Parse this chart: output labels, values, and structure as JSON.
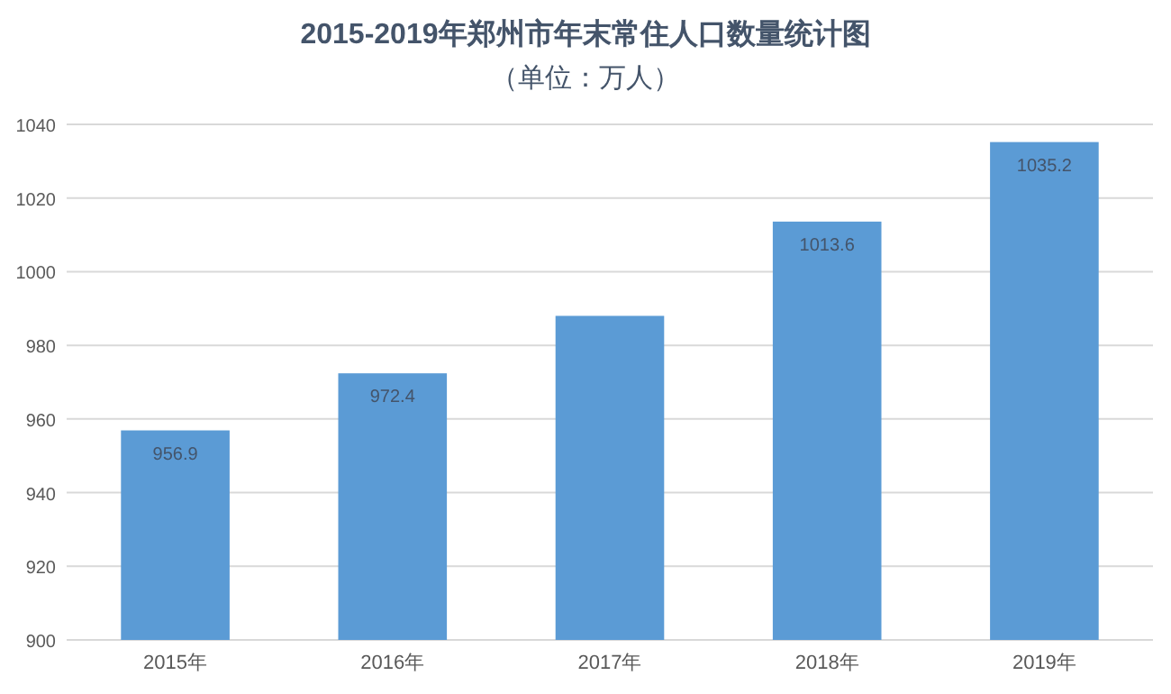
{
  "chart_data": {
    "type": "bar",
    "title": "2015-2019年郑州市年末常住人口数量统计图",
    "subtitle": "（单位：万人）",
    "categories": [
      "2015年",
      "2016年",
      "2017年",
      "2018年",
      "2019年"
    ],
    "values": [
      956.9,
      972.4,
      988,
      1013.6,
      1035.2
    ],
    "value_labels": [
      "956.9",
      "972.4",
      null,
      "1013.6",
      "1035.2"
    ],
    "color": "#5b9bd5",
    "ylim": [
      900,
      1040
    ],
    "yticks": [
      900,
      920,
      940,
      960,
      980,
      1000,
      1020,
      1040
    ],
    "grid": "y"
  }
}
